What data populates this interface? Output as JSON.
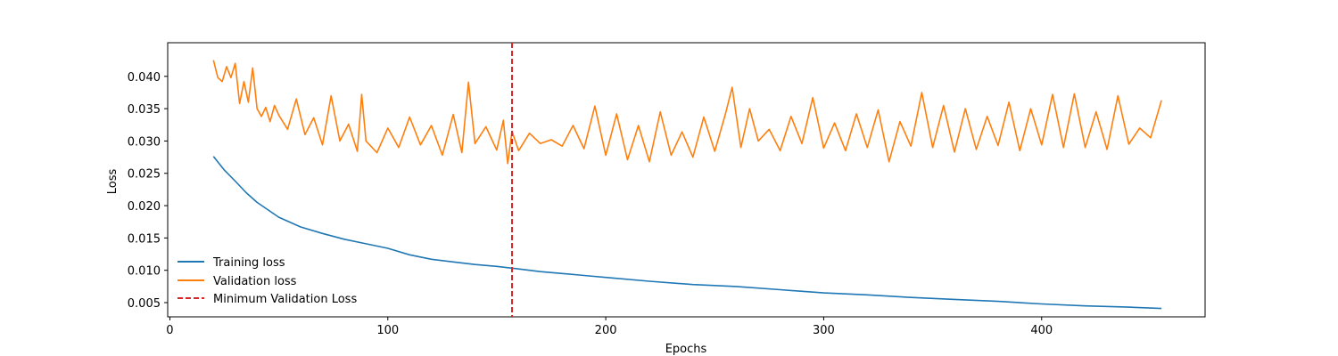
{
  "chart_data": {
    "type": "line",
    "title": "",
    "xlabel": "Epochs",
    "ylabel": "Loss",
    "xlim": [
      -1,
      475
    ],
    "ylim": [
      0.0028,
      0.0452
    ],
    "x_ticks": [
      0,
      100,
      200,
      300,
      400
    ],
    "x_tick_labels": [
      "0",
      "100",
      "200",
      "300",
      "400"
    ],
    "y_ticks": [
      0.005,
      0.01,
      0.015,
      0.02,
      0.025,
      0.03,
      0.035,
      0.04
    ],
    "y_tick_labels": [
      "0.005",
      "0.010",
      "0.015",
      "0.020",
      "0.025",
      "0.030",
      "0.035",
      "0.040"
    ],
    "grid": false,
    "legend_position": "lower-left",
    "series": [
      {
        "name": "Training loss",
        "color": "#1f77b4",
        "x": [
          20,
          25,
          30,
          35,
          40,
          50,
          60,
          70,
          80,
          90,
          100,
          110,
          120,
          130,
          140,
          150,
          160,
          170,
          180,
          190,
          200,
          220,
          240,
          260,
          280,
          300,
          320,
          340,
          360,
          380,
          400,
          420,
          440,
          455
        ],
        "y": [
          0.0276,
          0.0255,
          0.0238,
          0.022,
          0.0205,
          0.0182,
          0.0167,
          0.0157,
          0.0148,
          0.0141,
          0.0134,
          0.0124,
          0.0117,
          0.0113,
          0.0109,
          0.0106,
          0.0102,
          0.0098,
          0.0095,
          0.0092,
          0.0089,
          0.0083,
          0.0078,
          0.0075,
          0.007,
          0.0065,
          0.0062,
          0.0058,
          0.0055,
          0.0052,
          0.0048,
          0.0045,
          0.0043,
          0.0041
        ]
      },
      {
        "name": "Validation loss",
        "color": "#ff7f0e",
        "x": [
          20,
          22,
          24,
          26,
          28,
          30,
          32,
          34,
          36,
          38,
          40,
          42,
          44,
          46,
          48,
          50,
          54,
          58,
          62,
          66,
          70,
          74,
          78,
          82,
          86,
          88,
          90,
          95,
          100,
          105,
          110,
          115,
          120,
          125,
          130,
          134,
          137,
          140,
          145,
          150,
          153,
          155,
          157,
          160,
          165,
          170,
          175,
          180,
          185,
          190,
          195,
          200,
          205,
          210,
          215,
          220,
          225,
          230,
          235,
          240,
          245,
          250,
          255,
          258,
          262,
          266,
          270,
          275,
          280,
          285,
          290,
          295,
          300,
          305,
          310,
          315,
          320,
          325,
          330,
          335,
          340,
          345,
          350,
          355,
          360,
          365,
          370,
          375,
          380,
          385,
          390,
          395,
          400,
          405,
          410,
          415,
          420,
          425,
          430,
          435,
          440,
          445,
          450,
          455
        ],
        "y": [
          0.0425,
          0.0398,
          0.0392,
          0.0415,
          0.0398,
          0.042,
          0.0358,
          0.0392,
          0.036,
          0.0413,
          0.035,
          0.0338,
          0.0352,
          0.033,
          0.0355,
          0.034,
          0.0318,
          0.0365,
          0.031,
          0.0336,
          0.0294,
          0.037,
          0.03,
          0.0326,
          0.0284,
          0.0372,
          0.03,
          0.0282,
          0.032,
          0.029,
          0.0337,
          0.0294,
          0.0324,
          0.0278,
          0.0341,
          0.0282,
          0.0391,
          0.0296,
          0.0322,
          0.0286,
          0.0332,
          0.0265,
          0.0315,
          0.0285,
          0.0312,
          0.0296,
          0.0302,
          0.0292,
          0.0324,
          0.0288,
          0.0354,
          0.0278,
          0.0342,
          0.0271,
          0.0324,
          0.0268,
          0.0345,
          0.0278,
          0.0314,
          0.0275,
          0.0337,
          0.0284,
          0.0343,
          0.0383,
          0.029,
          0.035,
          0.03,
          0.0318,
          0.0285,
          0.0338,
          0.0296,
          0.0367,
          0.0289,
          0.0328,
          0.0285,
          0.0342,
          0.029,
          0.0348,
          0.0268,
          0.033,
          0.0292,
          0.0375,
          0.029,
          0.0355,
          0.0283,
          0.035,
          0.0287,
          0.0338,
          0.0293,
          0.036,
          0.0285,
          0.035,
          0.0294,
          0.0372,
          0.029,
          0.0373,
          0.029,
          0.0345,
          0.0287,
          0.037,
          0.0295,
          0.032,
          0.0305,
          0.0363
        ]
      }
    ],
    "annotations": [
      {
        "name": "Minimum Validation Loss",
        "type": "vertical-line",
        "style": "dashed",
        "color": "#d62728",
        "x": 157
      }
    ]
  }
}
